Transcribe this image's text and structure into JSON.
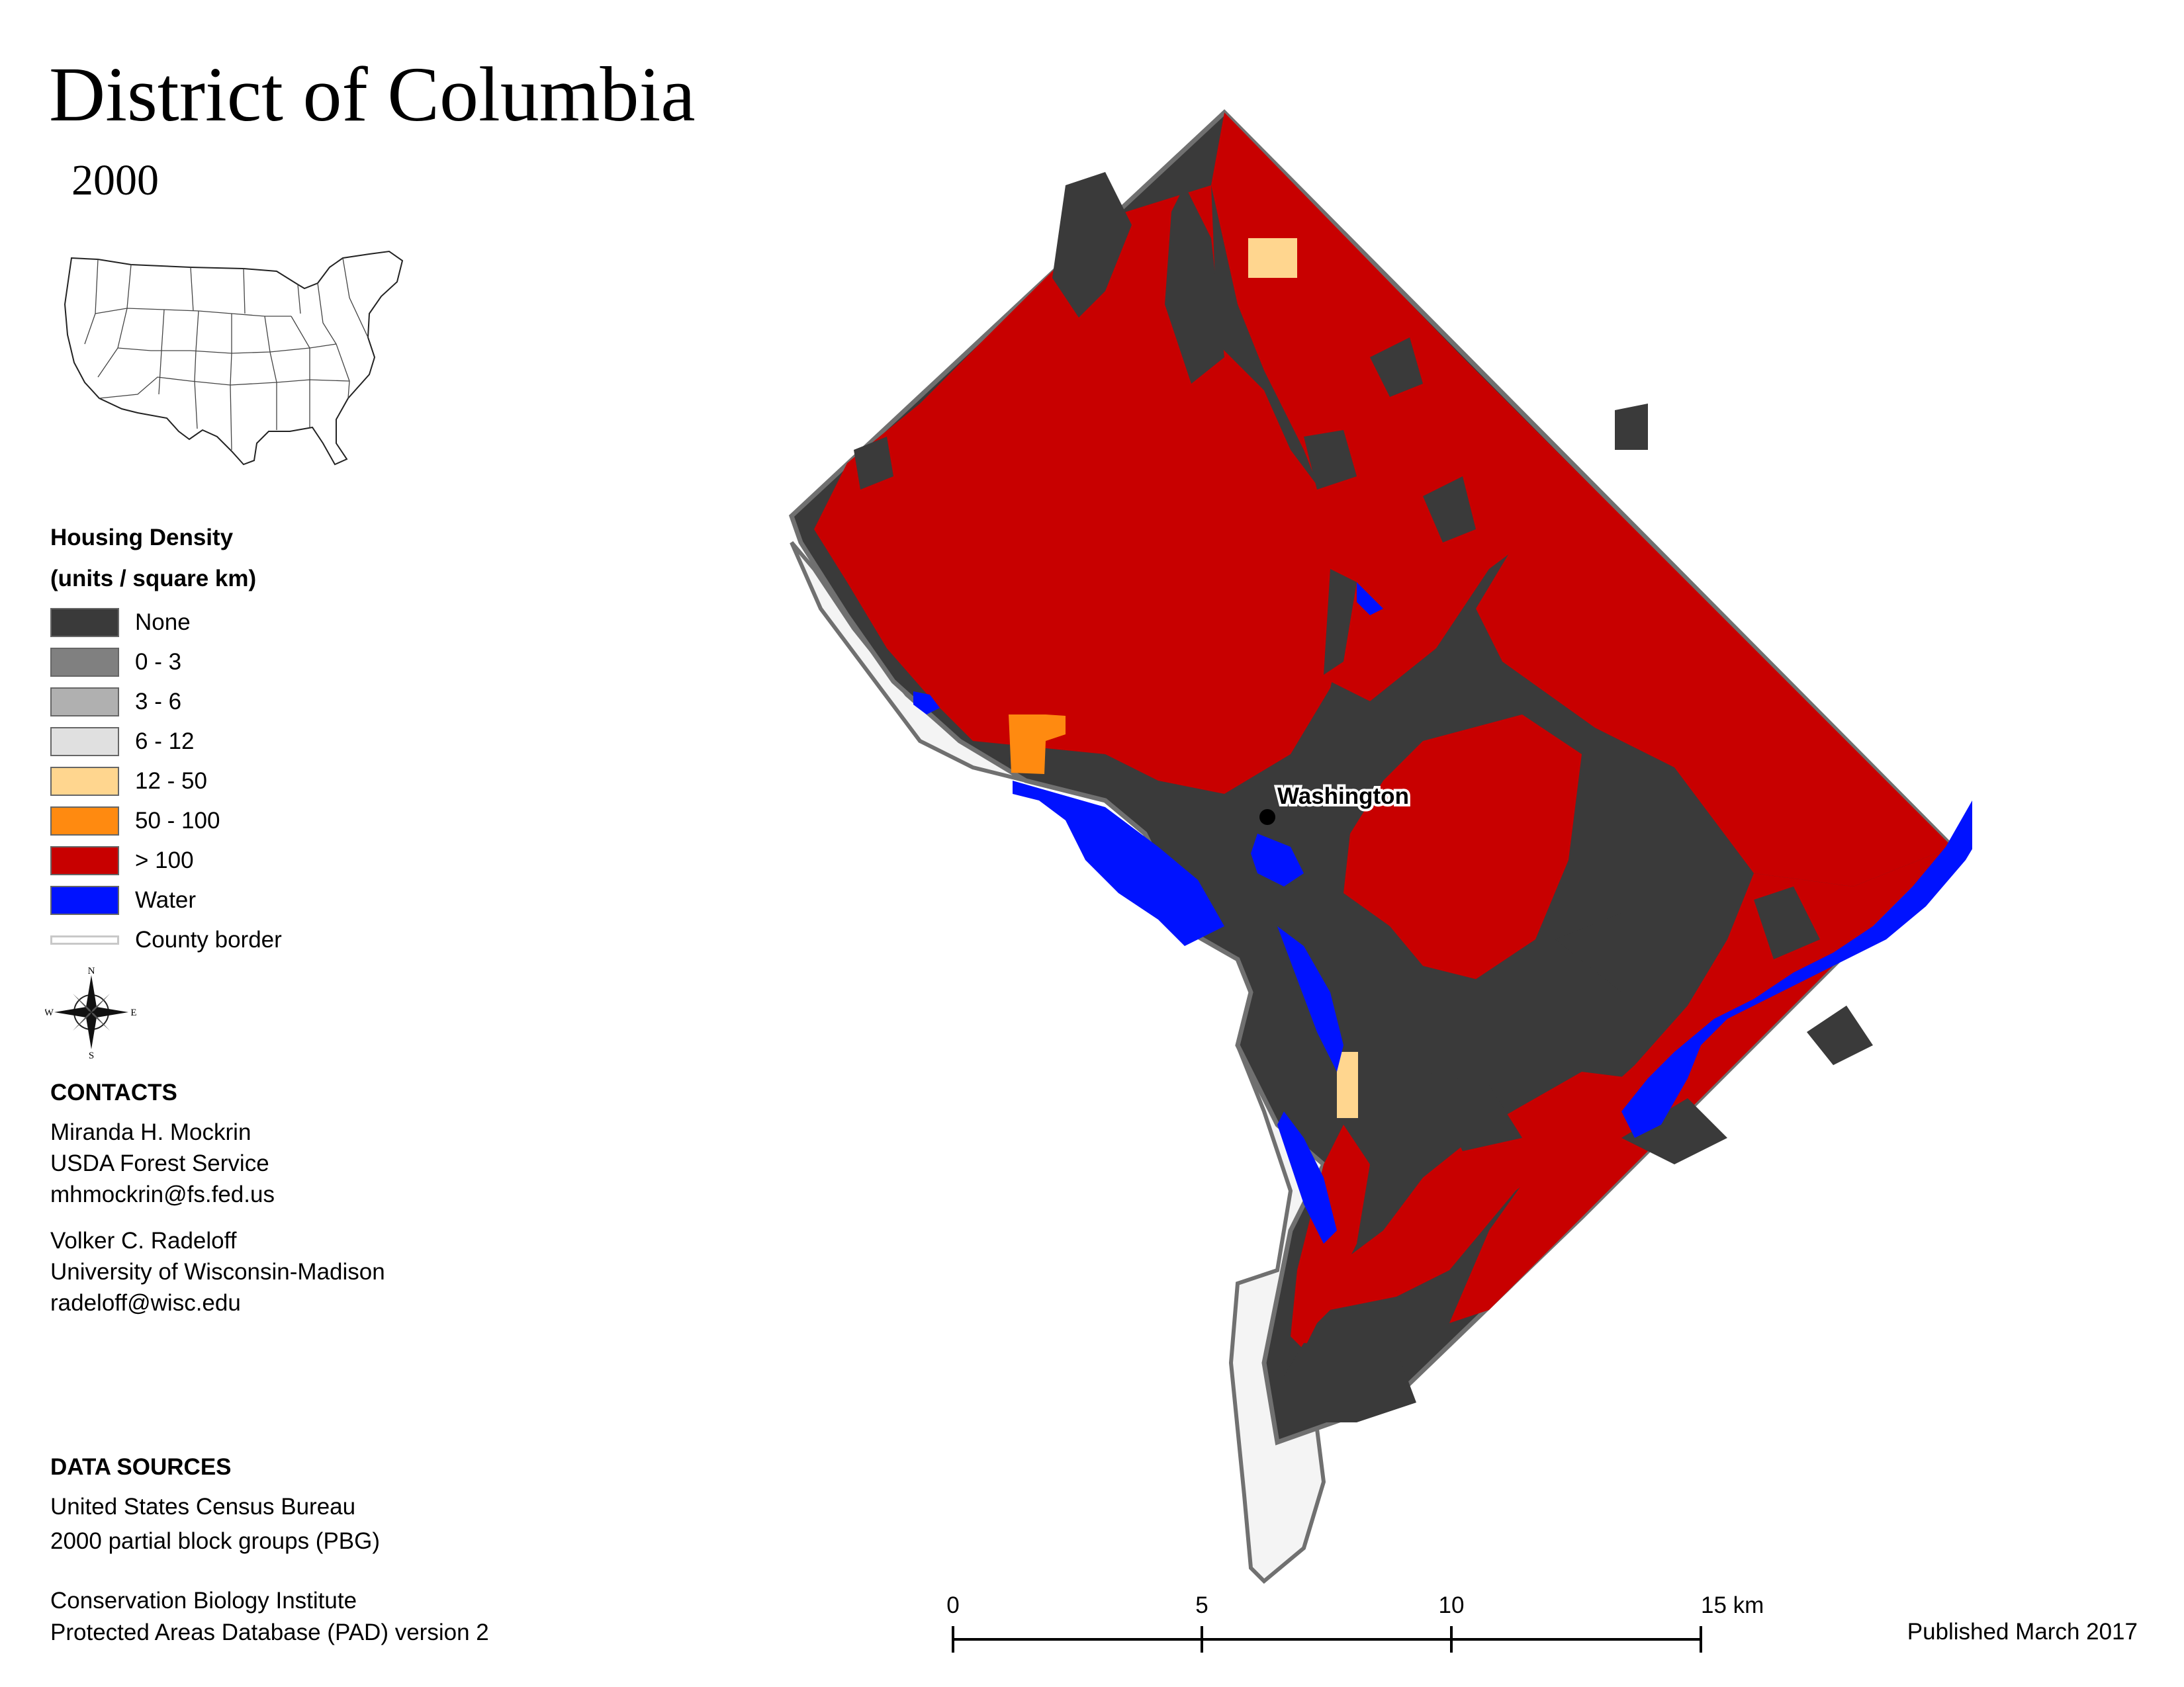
{
  "title": "District of Columbia",
  "year": "2000",
  "legend": {
    "title_line1": "Housing Density",
    "title_line2": "(units / square km)",
    "items": [
      {
        "label": "None",
        "color": "#3a3a3a"
      },
      {
        "label": "0 - 3",
        "color": "#808080"
      },
      {
        "label": "3 - 6",
        "color": "#b0b0b0"
      },
      {
        "label": "6 - 12",
        "color": "#e0e0e0"
      },
      {
        "label": "12 - 50",
        "color": "#ffd68f"
      },
      {
        "label": "50 - 100",
        "color": "#ff8a10"
      },
      {
        "label": "> 100",
        "color": "#c80000"
      },
      {
        "label": "Water",
        "color": "#0012ff"
      }
    ],
    "border_label": "County border"
  },
  "compass": {
    "n": "N",
    "s": "S",
    "e": "E",
    "w": "W"
  },
  "contacts": {
    "heading": "CONTACTS",
    "people": [
      {
        "name": "Miranda H. Mockrin",
        "org": "USDA Forest Service",
        "email": "mhmockrin@fs.fed.us"
      },
      {
        "name": "Volker C. Radeloff",
        "org": "University of Wisconsin-Madison",
        "email": "radeloff@wisc.edu"
      }
    ]
  },
  "data_sources": {
    "heading": "DATA SOURCES",
    "entries": [
      {
        "line1": "United States Census Bureau",
        "line2": "2000 partial block groups (PBG)"
      },
      {
        "line1": "Conservation Biology Institute",
        "line2": "Protected Areas Database (PAD) version 2"
      }
    ]
  },
  "map": {
    "city_label": "Washington",
    "colors": {
      "none": "#3a3a3a",
      "high": "#c80000",
      "low": "#ffd68f",
      "mid": "#ff8a10",
      "water": "#0012ff",
      "border": "#707070",
      "outside": "#f4f4f4"
    }
  },
  "scale_bar": {
    "ticks": [
      "0",
      "5",
      "10",
      "15 km"
    ]
  },
  "published": "Published March 2017"
}
